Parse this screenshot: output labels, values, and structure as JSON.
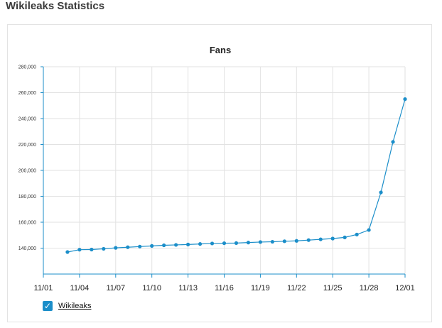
{
  "page": {
    "title": "Wikileaks Statistics"
  },
  "colors": {
    "series": "#1b8ec9",
    "grid": "#e2e2e2",
    "axis": "#1b8ec9"
  },
  "legend": {
    "label": "Wikileaks",
    "checked": true,
    "check_icon": "checkmark-icon"
  },
  "chart_data": {
    "type": "line",
    "title": "Fans",
    "xlabel": "",
    "ylabel": "",
    "ylim": [
      120000,
      280000
    ],
    "yticks": [
      140000,
      160000,
      180000,
      200000,
      220000,
      240000,
      260000,
      280000
    ],
    "ytick_labels": [
      "140,000",
      "160,000",
      "180,000",
      "200,000",
      "220,000",
      "240,000",
      "260,000",
      "280,000"
    ],
    "xlim": [
      "11/01",
      "12/01"
    ],
    "xtick_labels": [
      "11/01",
      "11/04",
      "11/07",
      "11/10",
      "11/13",
      "11/16",
      "11/19",
      "11/22",
      "11/25",
      "11/28",
      "12/01"
    ],
    "grid": true,
    "legend_position": "bottom-left",
    "series": [
      {
        "name": "Wikileaks",
        "x": [
          "11/03",
          "11/04",
          "11/05",
          "11/06",
          "11/07",
          "11/08",
          "11/09",
          "11/10",
          "11/11",
          "11/12",
          "11/13",
          "11/14",
          "11/15",
          "11/16",
          "11/17",
          "11/18",
          "11/19",
          "11/20",
          "11/21",
          "11/22",
          "11/23",
          "11/24",
          "11/25",
          "11/26",
          "11/27",
          "11/28",
          "11/29",
          "11/30",
          "12/01"
        ],
        "values": [
          137000,
          138800,
          138900,
          139500,
          140200,
          140700,
          141200,
          141700,
          142200,
          142500,
          142800,
          143200,
          143600,
          143800,
          143900,
          144300,
          144700,
          144900,
          145300,
          145600,
          146200,
          146800,
          147400,
          148300,
          150500,
          154000,
          183000,
          222000,
          255000
        ]
      }
    ]
  }
}
